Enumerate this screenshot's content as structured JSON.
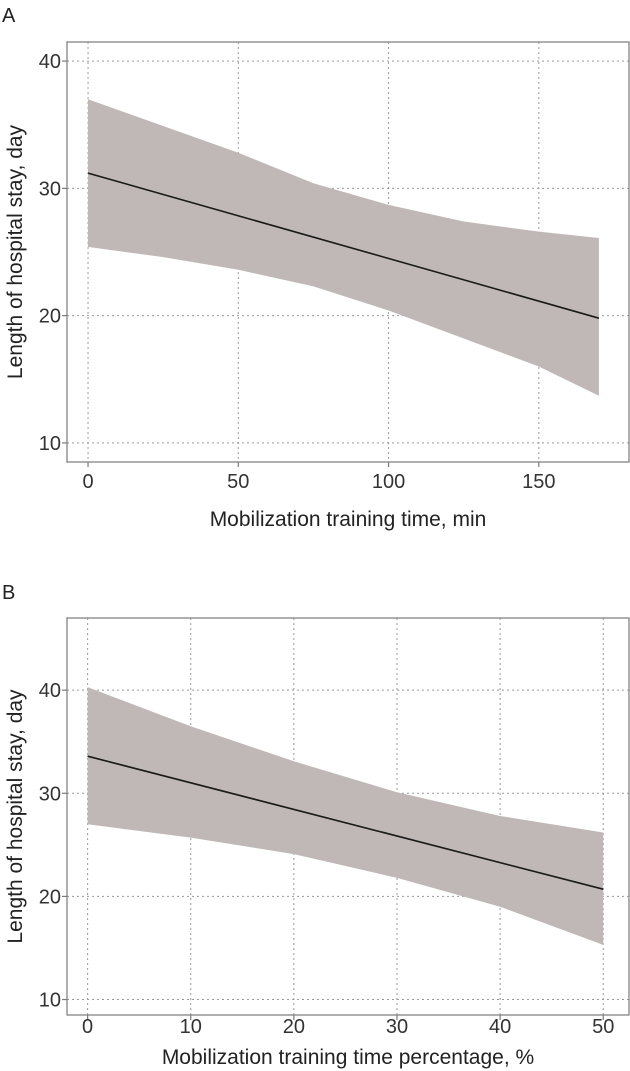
{
  "chart_data": [
    {
      "panel": "A",
      "type": "line",
      "xlabel": "Mobilization training time, min",
      "ylabel": "Length of hospital stay, day",
      "xlim": [
        -7,
        180
      ],
      "ylim": [
        8.5,
        41.5
      ],
      "xticks": [
        0,
        50,
        100,
        150
      ],
      "yticks": [
        10,
        20,
        30,
        40
      ],
      "grid": true,
      "series": [
        {
          "x": [
            0,
            170
          ],
          "y": [
            31.2,
            19.8
          ]
        }
      ],
      "band": {
        "x": [
          0,
          25,
          50,
          75,
          100,
          125,
          150,
          170
        ],
        "lower": [
          25.4,
          24.6,
          23.6,
          22.3,
          20.4,
          18.2,
          16.0,
          13.7
        ],
        "upper": [
          37.0,
          34.9,
          32.8,
          30.4,
          28.7,
          27.4,
          26.6,
          26.1
        ]
      }
    },
    {
      "panel": "B",
      "type": "line",
      "xlabel": "Mobilization training time percentage, %",
      "ylabel": "Length of hospital stay, day",
      "xlim": [
        -2,
        52.5
      ],
      "ylim": [
        8.5,
        47
      ],
      "xticks": [
        0,
        10,
        20,
        30,
        40,
        50
      ],
      "yticks": [
        10,
        20,
        30,
        40
      ],
      "grid": true,
      "series": [
        {
          "x": [
            0,
            50
          ],
          "y": [
            33.6,
            20.7
          ]
        }
      ],
      "band": {
        "x": [
          0,
          10,
          20,
          30,
          40,
          50
        ],
        "lower": [
          27.0,
          25.7,
          24.1,
          21.8,
          19.0,
          15.3
        ],
        "upper": [
          40.3,
          36.5,
          33.1,
          30.1,
          27.8,
          26.2
        ]
      }
    }
  ]
}
